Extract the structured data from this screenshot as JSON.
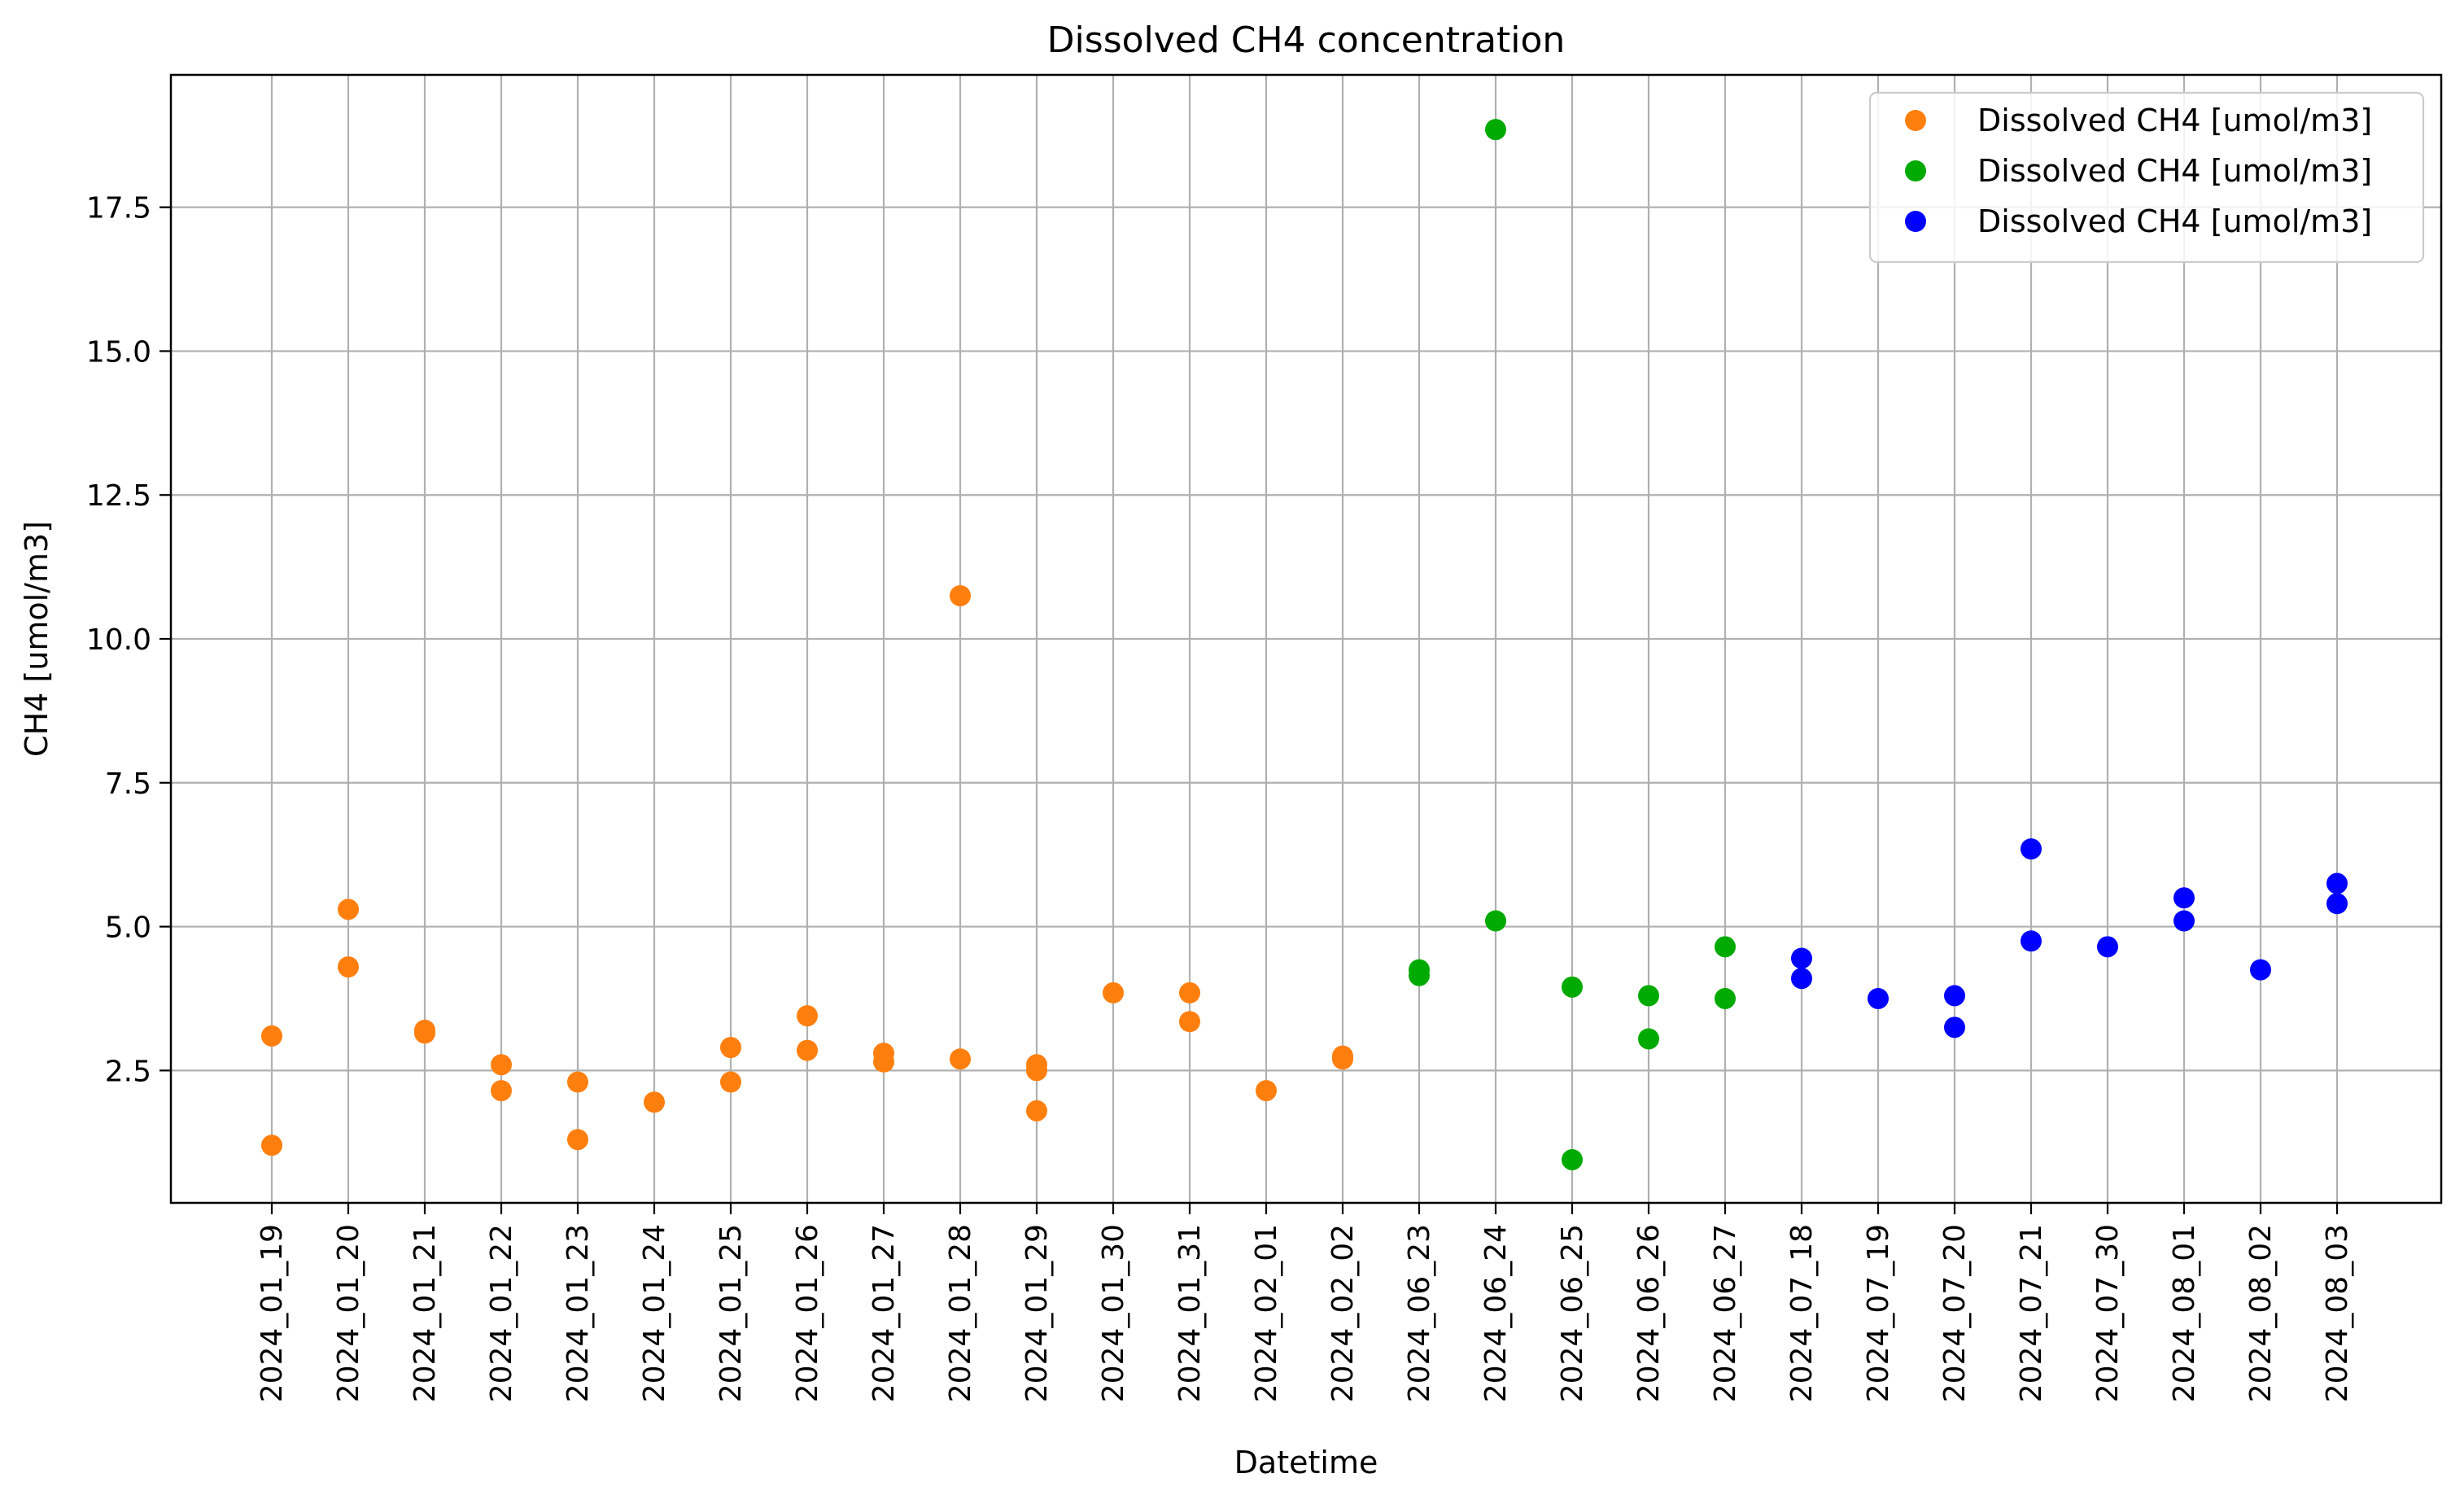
{
  "chart_data": {
    "type": "scatter",
    "title": "Dissolved CH4 concentration",
    "xlabel": "Datetime",
    "ylabel": "CH4 [umol/m3]",
    "grid": true,
    "legend_position": "top-right",
    "ylim": [
      0.2,
      19.8
    ],
    "y_ticks": [
      2.5,
      5.0,
      7.5,
      10.0,
      12.5,
      15.0,
      17.5
    ],
    "y_tick_labels": [
      "2.5",
      "5.0",
      "7.5",
      "10.0",
      "12.5",
      "15.0",
      "17.5"
    ],
    "categories": [
      "2024_01_19",
      "2024_01_20",
      "2024_01_21",
      "2024_01_22",
      "2024_01_23",
      "2024_01_24",
      "2024_01_25",
      "2024_01_26",
      "2024_01_27",
      "2024_01_28",
      "2024_01_29",
      "2024_01_30",
      "2024_01_31",
      "2024_02_01",
      "2024_02_02",
      "2024_06_23",
      "2024_06_24",
      "2024_06_25",
      "2024_06_26",
      "2024_06_27",
      "2024_07_18",
      "2024_07_19",
      "2024_07_20",
      "2024_07_21",
      "2024_07_30",
      "2024_08_01",
      "2024_08_02",
      "2024_08_03"
    ],
    "series": [
      {
        "name": "Dissolved CH4 [umol/m3]",
        "color": "#ff7f0e",
        "points": [
          {
            "x": "2024_01_19",
            "y": 3.1
          },
          {
            "x": "2024_01_19",
            "y": 1.2
          },
          {
            "x": "2024_01_20",
            "y": 5.3
          },
          {
            "x": "2024_01_20",
            "y": 4.3
          },
          {
            "x": "2024_01_21",
            "y": 3.15
          },
          {
            "x": "2024_01_21",
            "y": 3.2
          },
          {
            "x": "2024_01_22",
            "y": 2.6
          },
          {
            "x": "2024_01_22",
            "y": 2.15
          },
          {
            "x": "2024_01_23",
            "y": 2.3
          },
          {
            "x": "2024_01_23",
            "y": 1.3
          },
          {
            "x": "2024_01_24",
            "y": 1.95
          },
          {
            "x": "2024_01_25",
            "y": 2.9
          },
          {
            "x": "2024_01_25",
            "y": 2.3
          },
          {
            "x": "2024_01_26",
            "y": 3.45
          },
          {
            "x": "2024_01_26",
            "y": 2.85
          },
          {
            "x": "2024_01_27",
            "y": 2.8
          },
          {
            "x": "2024_01_27",
            "y": 2.65
          },
          {
            "x": "2024_01_28",
            "y": 10.75
          },
          {
            "x": "2024_01_28",
            "y": 2.7
          },
          {
            "x": "2024_01_29",
            "y": 2.6
          },
          {
            "x": "2024_01_29",
            "y": 2.5
          },
          {
            "x": "2024_01_29",
            "y": 1.8
          },
          {
            "x": "2024_01_30",
            "y": 3.85
          },
          {
            "x": "2024_01_31",
            "y": 3.85
          },
          {
            "x": "2024_01_31",
            "y": 3.35
          },
          {
            "x": "2024_02_01",
            "y": 2.15
          },
          {
            "x": "2024_02_02",
            "y": 2.75
          },
          {
            "x": "2024_02_02",
            "y": 2.7
          }
        ]
      },
      {
        "name": "Dissolved CH4 [umol/m3]",
        "color": "#00aa00",
        "points": [
          {
            "x": "2024_06_23",
            "y": 4.25
          },
          {
            "x": "2024_06_23",
            "y": 4.15
          },
          {
            "x": "2024_06_24",
            "y": 18.85
          },
          {
            "x": "2024_06_24",
            "y": 5.1
          },
          {
            "x": "2024_06_25",
            "y": 3.95
          },
          {
            "x": "2024_06_25",
            "y": 0.95
          },
          {
            "x": "2024_06_26",
            "y": 3.8
          },
          {
            "x": "2024_06_26",
            "y": 3.05
          },
          {
            "x": "2024_06_27",
            "y": 4.65
          },
          {
            "x": "2024_06_27",
            "y": 3.75
          }
        ]
      },
      {
        "name": "Dissolved CH4 [umol/m3]",
        "color": "#0000ff",
        "points": [
          {
            "x": "2024_07_18",
            "y": 4.45
          },
          {
            "x": "2024_07_18",
            "y": 4.1
          },
          {
            "x": "2024_07_19",
            "y": 3.75
          },
          {
            "x": "2024_07_20",
            "y": 3.8
          },
          {
            "x": "2024_07_20",
            "y": 3.25
          },
          {
            "x": "2024_07_21",
            "y": 6.35
          },
          {
            "x": "2024_07_21",
            "y": 4.75
          },
          {
            "x": "2024_07_30",
            "y": 4.65
          },
          {
            "x": "2024_08_01",
            "y": 5.5
          },
          {
            "x": "2024_08_01",
            "y": 5.1
          },
          {
            "x": "2024_08_02",
            "y": 4.25
          },
          {
            "x": "2024_08_03",
            "y": 5.75
          },
          {
            "x": "2024_08_03",
            "y": 5.4
          }
        ]
      }
    ]
  }
}
